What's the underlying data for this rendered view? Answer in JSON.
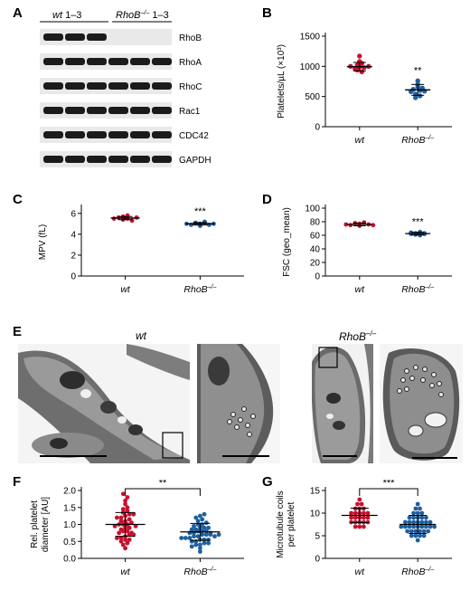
{
  "panels": {
    "a": "A",
    "b": "B",
    "c": "C",
    "d": "D",
    "e": "E",
    "f": "F",
    "g": "G"
  },
  "blot": {
    "group1_label": "wt",
    "group1_suffix": "1–3",
    "group2_label": "RhoB",
    "group2_sup": "–/–",
    "group2_suffix": "1–3",
    "bands": [
      {
        "label": "RhoB",
        "lanes": [
          1,
          1,
          1,
          0,
          0,
          0
        ]
      },
      {
        "label": "RhoA",
        "lanes": [
          1,
          1,
          1,
          1,
          1,
          1
        ]
      },
      {
        "label": "RhoC",
        "lanes": [
          1,
          1,
          1,
          1,
          1,
          1
        ]
      },
      {
        "label": "Rac1",
        "lanes": [
          1,
          1,
          1,
          1,
          1,
          1
        ]
      },
      {
        "label": "CDC42",
        "lanes": [
          1,
          1,
          1,
          1,
          1,
          1
        ]
      },
      {
        "label": "GAPDH",
        "lanes": [
          1,
          1,
          1,
          1,
          1,
          1
        ]
      }
    ]
  },
  "em": {
    "wt_title": "wt",
    "ko_title": "RhoB",
    "ko_sup": "–/–"
  },
  "chart_data": [
    {
      "id": "B",
      "type": "scatter",
      "ylabel": "Platelets/µL (×10³)",
      "yticks": [
        0,
        500,
        1000,
        1500
      ],
      "ylim": [
        0,
        1500
      ],
      "categories": [
        "wt",
        "RhoB–/–"
      ],
      "significance": "**",
      "colors": [
        "#c8102e",
        "#1f5f9e"
      ],
      "series": [
        {
          "values": [
            1000,
            960,
            1020,
            940,
            1050,
            990,
            910,
            1080,
            1170,
            980,
            1000
          ]
        },
        {
          "values": [
            620,
            580,
            660,
            700,
            540,
            600,
            480,
            760,
            640,
            590,
            510
          ]
        }
      ],
      "mean": [
        995,
        610
      ],
      "sd": [
        70,
        90
      ]
    },
    {
      "id": "C",
      "type": "scatter",
      "ylabel": "MPV (fL)",
      "yticks": [
        0,
        2,
        4,
        6
      ],
      "ylim": [
        0,
        6.5
      ],
      "categories": [
        "wt",
        "RhoB–/–"
      ],
      "significance": "***",
      "colors": [
        "#c8102e",
        "#1f5f9e"
      ],
      "series": [
        {
          "values": [
            5.5,
            5.6,
            5.4,
            5.7,
            5.5,
            5.3,
            5.8,
            5.6
          ]
        },
        {
          "values": [
            5.0,
            4.9,
            5.1,
            5.0,
            4.8,
            5.2,
            4.9,
            5.0
          ]
        }
      ],
      "mean": [
        5.55,
        5.0
      ],
      "sd": [
        0.15,
        0.12
      ]
    },
    {
      "id": "D",
      "type": "scatter",
      "ylabel": "FSC (geo_mean)",
      "yticks": [
        0,
        20,
        40,
        60,
        80,
        100
      ],
      "ylim": [
        0,
        100
      ],
      "categories": [
        "wt",
        "RhoB–/–"
      ],
      "significance": "***",
      "colors": [
        "#c8102e",
        "#1f5f9e"
      ],
      "series": [
        {
          "values": [
            76,
            75,
            78,
            77,
            74,
            79,
            76,
            75
          ]
        },
        {
          "values": [
            62,
            64,
            61,
            63,
            60,
            65,
            62,
            63
          ]
        }
      ],
      "mean": [
        76,
        62.5
      ],
      "sd": [
        2,
        2
      ]
    },
    {
      "id": "F",
      "type": "scatter",
      "ylabel": "Rel. platelet diameter [AU]",
      "yticks": [
        0.0,
        0.5,
        1.0,
        1.5,
        2.0
      ],
      "ylim": [
        0,
        2.0
      ],
      "categories": [
        "wt",
        "RhoB–/–"
      ],
      "significance": "**",
      "colors": [
        "#c8102e",
        "#1f5f9e"
      ],
      "series": [
        {
          "values": [
            0.4,
            0.45,
            0.5,
            0.55,
            0.6,
            0.6,
            0.65,
            0.7,
            0.7,
            0.75,
            0.8,
            0.8,
            0.85,
            0.9,
            0.9,
            0.95,
            1.0,
            1.0,
            1.0,
            1.05,
            1.1,
            1.1,
            1.15,
            1.2,
            1.2,
            1.25,
            1.3,
            1.3,
            1.35,
            1.4,
            1.45,
            1.5,
            1.6,
            1.7,
            1.9,
            1.8,
            0.3,
            0.55,
            0.75,
            0.95
          ]
        },
        {
          "values": [
            0.3,
            0.35,
            0.4,
            0.4,
            0.45,
            0.5,
            0.5,
            0.55,
            0.55,
            0.6,
            0.6,
            0.6,
            0.65,
            0.65,
            0.7,
            0.7,
            0.7,
            0.75,
            0.75,
            0.8,
            0.8,
            0.8,
            0.85,
            0.85,
            0.9,
            0.9,
            0.95,
            1.0,
            1.0,
            1.05,
            1.1,
            1.15,
            1.2,
            1.25,
            1.3,
            0.45,
            0.65,
            0.75,
            0.9,
            0.55,
            0.2,
            0.7
          ]
        }
      ],
      "mean": [
        1.0,
        0.78
      ],
      "sd": [
        0.35,
        0.25
      ]
    },
    {
      "id": "G",
      "type": "scatter",
      "ylabel": "Microtubule coils per platelet",
      "yticks": [
        0,
        5,
        10,
        15
      ],
      "ylim": [
        0,
        15
      ],
      "categories": [
        "wt",
        "RhoB–/–"
      ],
      "significance": "***",
      "colors": [
        "#c8102e",
        "#1f5f9e"
      ],
      "series": [
        {
          "values": [
            7,
            7,
            7,
            8,
            8,
            8,
            8,
            9,
            9,
            9,
            9,
            10,
            10,
            10,
            10,
            11,
            11,
            11,
            12,
            12,
            13,
            9,
            10,
            8
          ]
        },
        {
          "values": [
            4,
            5,
            5,
            5,
            6,
            6,
            6,
            6,
            6,
            7,
            7,
            7,
            7,
            7,
            7,
            7,
            8,
            8,
            8,
            8,
            8,
            8,
            9,
            9,
            9,
            9,
            10,
            10,
            10,
            11,
            11,
            12,
            6,
            7,
            8,
            9,
            5,
            7
          ]
        }
      ],
      "mean": [
        9.5,
        7.5
      ],
      "sd": [
        1.6,
        2.0
      ]
    }
  ]
}
